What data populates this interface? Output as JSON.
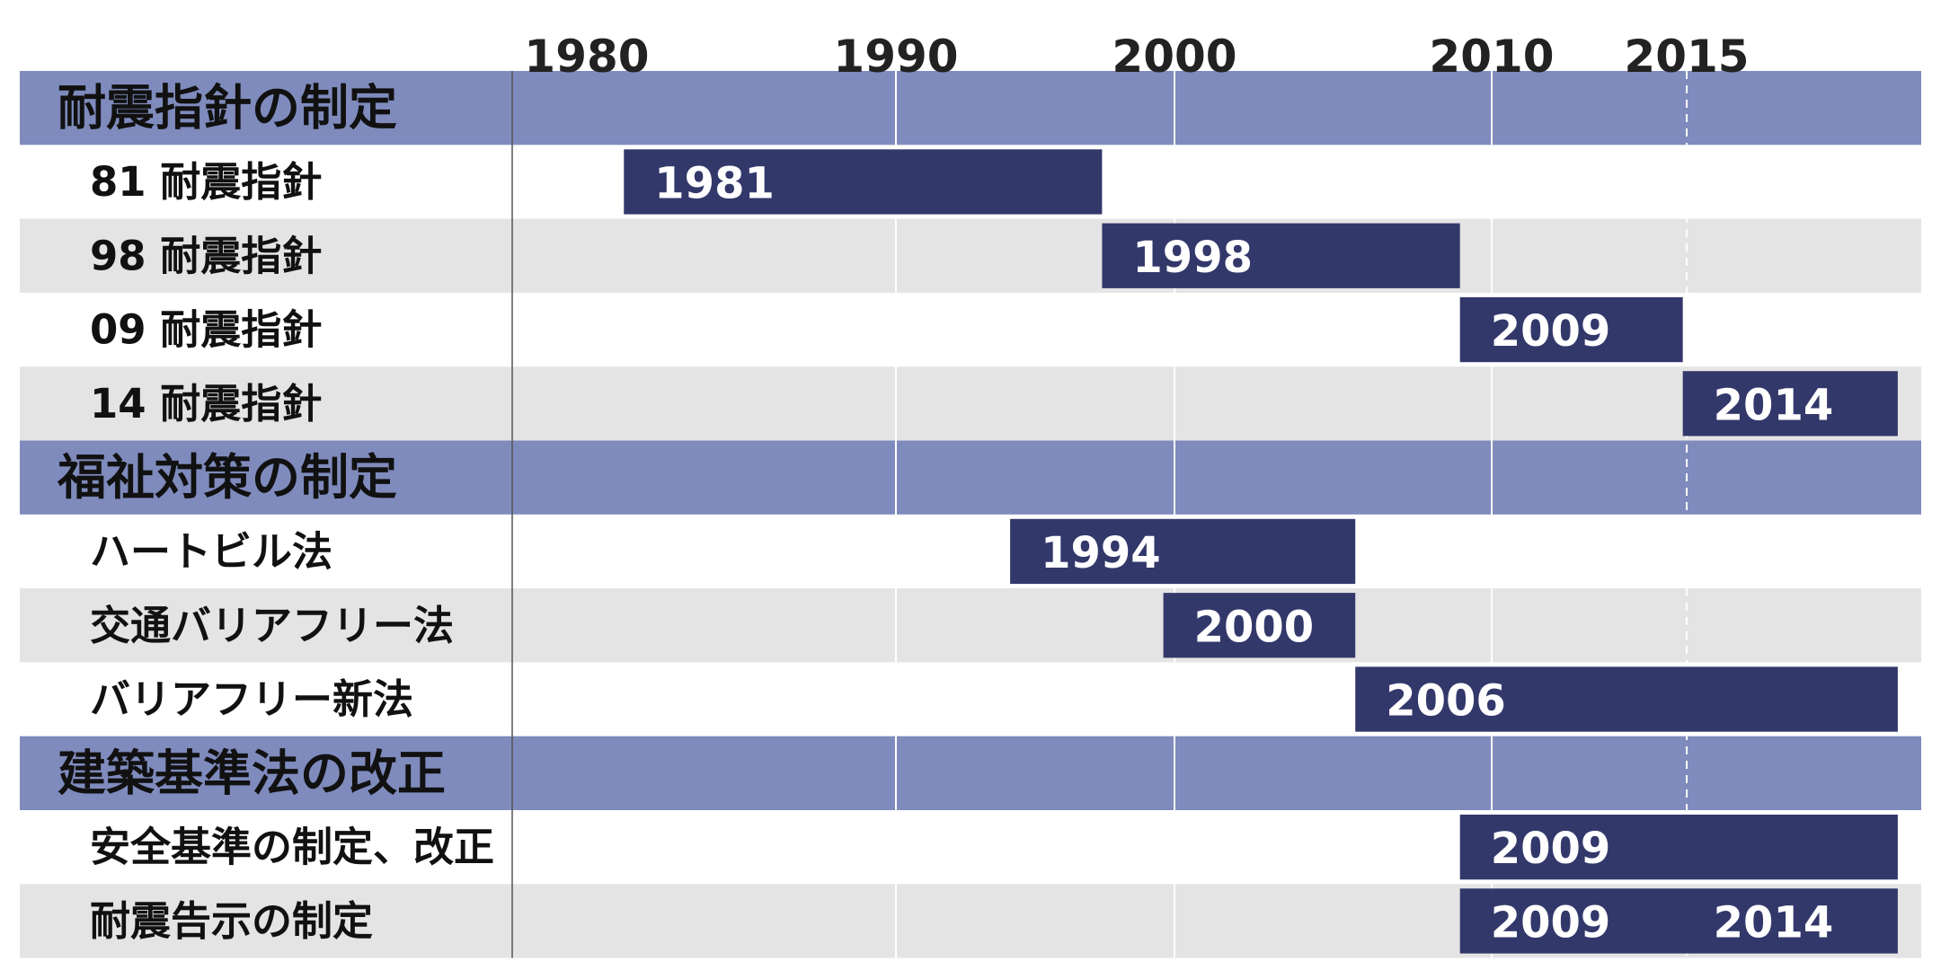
{
  "chart_data": {
    "type": "timeline",
    "title": "",
    "xlim": [
      1980,
      2019
    ],
    "year_ticks": [
      1980,
      1990,
      2000,
      2010,
      2015
    ],
    "colors": {
      "section_band": "#7f8bbd",
      "bar": "#33386b",
      "alt_row": "#e4e4e4",
      "gridline": "#ffffff",
      "label_divider": "#555555"
    },
    "rows": [
      {
        "kind": "section",
        "label": "耐震指針の制定"
      },
      {
        "kind": "item",
        "label": "81 耐震指針",
        "start": 1981.2,
        "end": 1997.4,
        "bar_labels": [
          {
            "text": "1981",
            "at": 1981.2
          }
        ]
      },
      {
        "kind": "item",
        "label": "98 耐震指針",
        "start": 1997.4,
        "end": 2009.0,
        "bar_labels": [
          {
            "text": "1998",
            "at": 1997.4
          }
        ]
      },
      {
        "kind": "item",
        "label": "09 耐震指針",
        "start": 2009.0,
        "end": 2014.9,
        "bar_labels": [
          {
            "text": "2009",
            "at": 2009.0
          }
        ]
      },
      {
        "kind": "item",
        "label": "14 耐震指針",
        "start": 2014.9,
        "end": 2018.6,
        "bar_labels": [
          {
            "text": "2014",
            "at": 2014.9
          }
        ]
      },
      {
        "kind": "section",
        "label": "福祉対策の制定"
      },
      {
        "kind": "item",
        "label": "ハートビル法",
        "start": 1994.1,
        "end": 2005.7,
        "bar_labels": [
          {
            "text": "1994",
            "at": 1994.1
          }
        ]
      },
      {
        "kind": "item",
        "label": "交通バリアフリー法",
        "start": 1999.6,
        "end": 2005.7,
        "bar_labels": [
          {
            "text": "2000",
            "at": 1999.6
          }
        ]
      },
      {
        "kind": "item",
        "label": "バリアフリー新法",
        "start": 2005.7,
        "end": 2018.6,
        "bar_labels": [
          {
            "text": "2006",
            "at": 2005.7
          }
        ]
      },
      {
        "kind": "section",
        "label": "建築基準法の改正"
      },
      {
        "kind": "item",
        "label": "安全基準の制定、改正",
        "start": 2009.0,
        "end": 2018.6,
        "bar_labels": [
          {
            "text": "2009",
            "at": 2009.0
          }
        ]
      },
      {
        "kind": "item",
        "label": "耐震告示の制定",
        "start": 2009.0,
        "end": 2018.6,
        "bar_labels": [
          {
            "text": "2009",
            "at": 2009.0
          },
          {
            "text": "2014",
            "at": 2014.9
          }
        ]
      }
    ]
  }
}
